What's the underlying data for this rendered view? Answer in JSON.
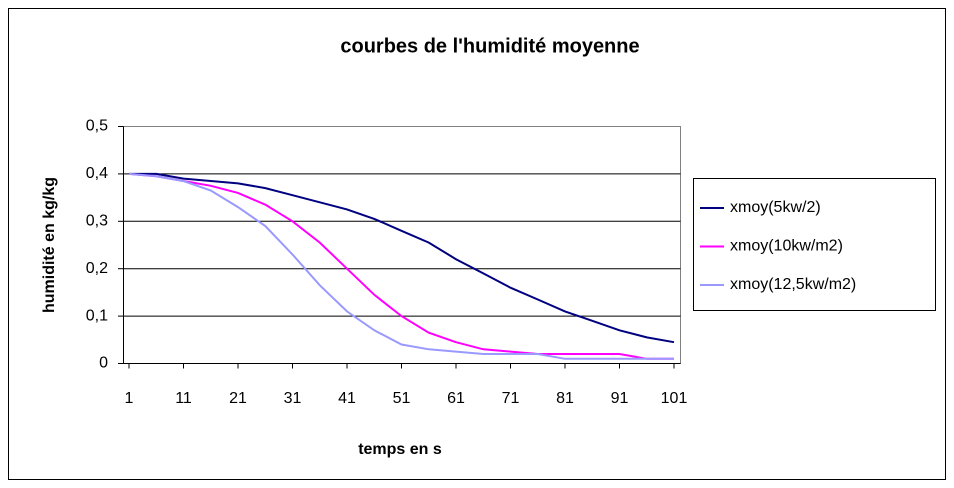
{
  "chart_data": {
    "type": "line",
    "title": "courbes de l'humidité moyenne",
    "x_label": "temps en s",
    "y_label": "humidité en kg/kg",
    "x": [
      1,
      6,
      11,
      16,
      21,
      26,
      31,
      36,
      41,
      46,
      51,
      56,
      61,
      66,
      71,
      76,
      81,
      86,
      91,
      96,
      101
    ],
    "xlim": [
      1,
      101
    ],
    "xticks": [
      1,
      11,
      21,
      31,
      41,
      51,
      61,
      71,
      81,
      91,
      101
    ],
    "ylim": [
      0,
      0.5
    ],
    "yticks": [
      0,
      {
        "value": 0.1,
        "label": "0,1"
      },
      {
        "value": 0.2,
        "label": "0,2"
      },
      {
        "value": 0.3,
        "label": "0,3"
      },
      {
        "value": 0.4,
        "label": "0,4"
      },
      {
        "value": 0.5,
        "label": "0,5"
      }
    ],
    "grid": true,
    "legend": "right",
    "series": [
      {
        "name": "xmoy(5kw/2)",
        "color": "#000080",
        "values": [
          0.4,
          0.4,
          0.39,
          0.385,
          0.38,
          0.37,
          0.355,
          0.34,
          0.325,
          0.305,
          0.28,
          0.255,
          0.22,
          0.19,
          0.16,
          0.135,
          0.11,
          0.09,
          0.07,
          0.055,
          0.045
        ]
      },
      {
        "name": "xmoy(10kw/m2)",
        "color": "#ff00ff",
        "values": [
          0.4,
          0.395,
          0.385,
          0.375,
          0.36,
          0.335,
          0.3,
          0.255,
          0.2,
          0.145,
          0.1,
          0.065,
          0.045,
          0.03,
          0.025,
          0.02,
          0.02,
          0.02,
          0.02,
          0.01,
          0.01
        ]
      },
      {
        "name": "xmoy(12,5kw/m2)",
        "color": "#9999ff",
        "values": [
          0.4,
          0.395,
          0.385,
          0.365,
          0.33,
          0.29,
          0.23,
          0.165,
          0.11,
          0.07,
          0.04,
          0.03,
          0.025,
          0.02,
          0.02,
          0.02,
          0.01,
          0.01,
          0.01,
          0.01,
          0.01
        ]
      }
    ]
  }
}
